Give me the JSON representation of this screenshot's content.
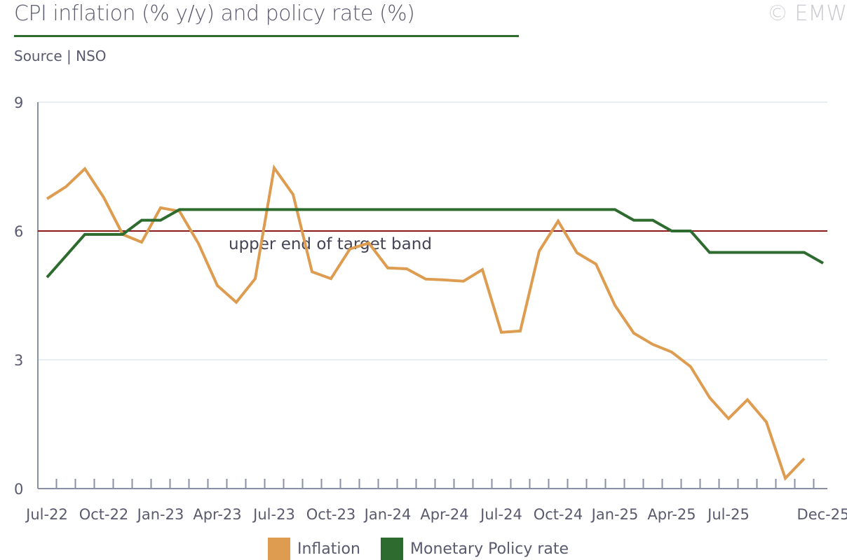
{
  "title": "CPI inflation (% y/y) and policy rate (%)",
  "source": "Source | NSO",
  "copyright": "© EMW",
  "colors": {
    "inflation": "#dd9c4f",
    "policy": "#2e6b2e",
    "band": "#8b1a1a",
    "grid": "#dde7f0",
    "axis": "#8a90a4"
  },
  "chart_data": {
    "type": "line",
    "title": "CPI inflation (% y/y) and policy rate (%)",
    "xlabel": "",
    "ylabel": "",
    "ylim": [
      0,
      9
    ],
    "yticks": [
      0,
      3,
      6,
      9
    ],
    "grid": true,
    "legend_position": "bottom",
    "x": [
      "Jul-22",
      "Aug-22",
      "Sep-22",
      "Oct-22",
      "Nov-22",
      "Dec-22",
      "Jan-23",
      "Feb-23",
      "Mar-23",
      "Apr-23",
      "May-23",
      "Jun-23",
      "Jul-23",
      "Aug-23",
      "Sep-23",
      "Oct-23",
      "Nov-23",
      "Dec-23",
      "Jan-24",
      "Feb-24",
      "Mar-24",
      "Apr-24",
      "May-24",
      "Jun-24",
      "Jul-24",
      "Aug-24",
      "Sep-24",
      "Oct-24",
      "Nov-24",
      "Dec-24",
      "Jan-25",
      "Feb-25",
      "Mar-25",
      "Apr-25",
      "May-25",
      "Jun-25",
      "Jul-25",
      "Aug-25",
      "Sep-25",
      "Oct-25",
      "Nov-25",
      "Dec-25"
    ],
    "xtick_labels": [
      {
        "label": "Jul-22",
        "index": 0
      },
      {
        "label": "Oct-22",
        "index": 3
      },
      {
        "label": "Jan-23",
        "index": 6
      },
      {
        "label": "Apr-23",
        "index": 9
      },
      {
        "label": "Jul-23",
        "index": 12
      },
      {
        "label": "Oct-23",
        "index": 15
      },
      {
        "label": "Jan-24",
        "index": 18
      },
      {
        "label": "Apr-24",
        "index": 21
      },
      {
        "label": "Jul-24",
        "index": 24
      },
      {
        "label": "Oct-24",
        "index": 27
      },
      {
        "label": "Jan-25",
        "index": 30
      },
      {
        "label": "Apr-25",
        "index": 33
      },
      {
        "label": "Jul-25",
        "index": 36
      },
      {
        "label": "Dec-25",
        "index": 41
      }
    ],
    "series": [
      {
        "name": "Inflation",
        "values": [
          6.75,
          7.03,
          7.45,
          6.78,
          5.92,
          5.74,
          6.54,
          6.46,
          5.71,
          4.73,
          4.34,
          4.89,
          7.47,
          6.85,
          5.05,
          4.89,
          5.58,
          5.72,
          5.14,
          5.12,
          4.88,
          4.86,
          4.83,
          5.1,
          3.64,
          3.67,
          5.53,
          6.23,
          5.49,
          5.23,
          4.27,
          3.62,
          3.36,
          3.18,
          2.84,
          2.12,
          1.63,
          2.07,
          1.55,
          0.24,
          0.7,
          null
        ]
      },
      {
        "name": "Monetary Policy rate",
        "values": [
          4.92,
          5.42,
          5.92,
          5.92,
          5.92,
          6.25,
          6.25,
          6.5,
          6.5,
          6.5,
          6.5,
          6.5,
          6.5,
          6.5,
          6.5,
          6.5,
          6.5,
          6.5,
          6.5,
          6.5,
          6.5,
          6.5,
          6.5,
          6.5,
          6.5,
          6.5,
          6.5,
          6.5,
          6.5,
          6.5,
          6.5,
          6.25,
          6.25,
          6.0,
          6.0,
          5.5,
          5.5,
          5.5,
          5.5,
          5.5,
          5.5,
          5.25
        ]
      }
    ],
    "reference_line": {
      "value": 6,
      "label": "upper end of target band"
    }
  }
}
